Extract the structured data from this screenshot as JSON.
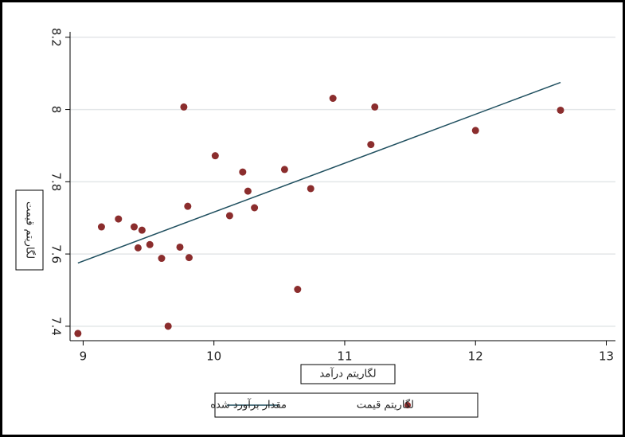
{
  "chart_data": {
    "type": "scatter",
    "x_label": "لگاریتم درآمد",
    "y_label": "لگاریتم قیمت",
    "xlim": [
      8.9,
      13.07
    ],
    "ylim": [
      7.36,
      8.215
    ],
    "xticks": [
      9,
      10,
      11,
      12,
      13
    ],
    "yticks": [
      7.4,
      7.6,
      7.8,
      8,
      8.2
    ],
    "grid": true,
    "series": [
      {
        "name": "مقدار برآورد شده",
        "kind": "line",
        "color": "#1f4f5f",
        "x": [
          8.96,
          12.65
        ],
        "values": [
          7.575,
          8.075
        ]
      },
      {
        "name": "لگاریتم قیمت",
        "kind": "scatter",
        "color": "#8b2d2d",
        "x": [
          8.96,
          9.14,
          9.27,
          9.39,
          9.45,
          9.42,
          9.51,
          9.6,
          9.65,
          9.74,
          9.77,
          9.8,
          9.81,
          10.01,
          10.12,
          10.22,
          10.26,
          10.31,
          10.54,
          10.64,
          10.74,
          10.91,
          11.2,
          11.23,
          12.0,
          12.65
        ],
        "values": [
          7.38,
          7.675,
          7.697,
          7.675,
          7.666,
          7.617,
          7.626,
          7.588,
          7.4,
          7.619,
          8.007,
          7.732,
          7.59,
          7.872,
          7.706,
          7.827,
          7.774,
          7.728,
          7.834,
          7.502,
          7.781,
          8.031,
          7.903,
          8.007,
          7.942,
          7.998
        ]
      }
    ]
  }
}
